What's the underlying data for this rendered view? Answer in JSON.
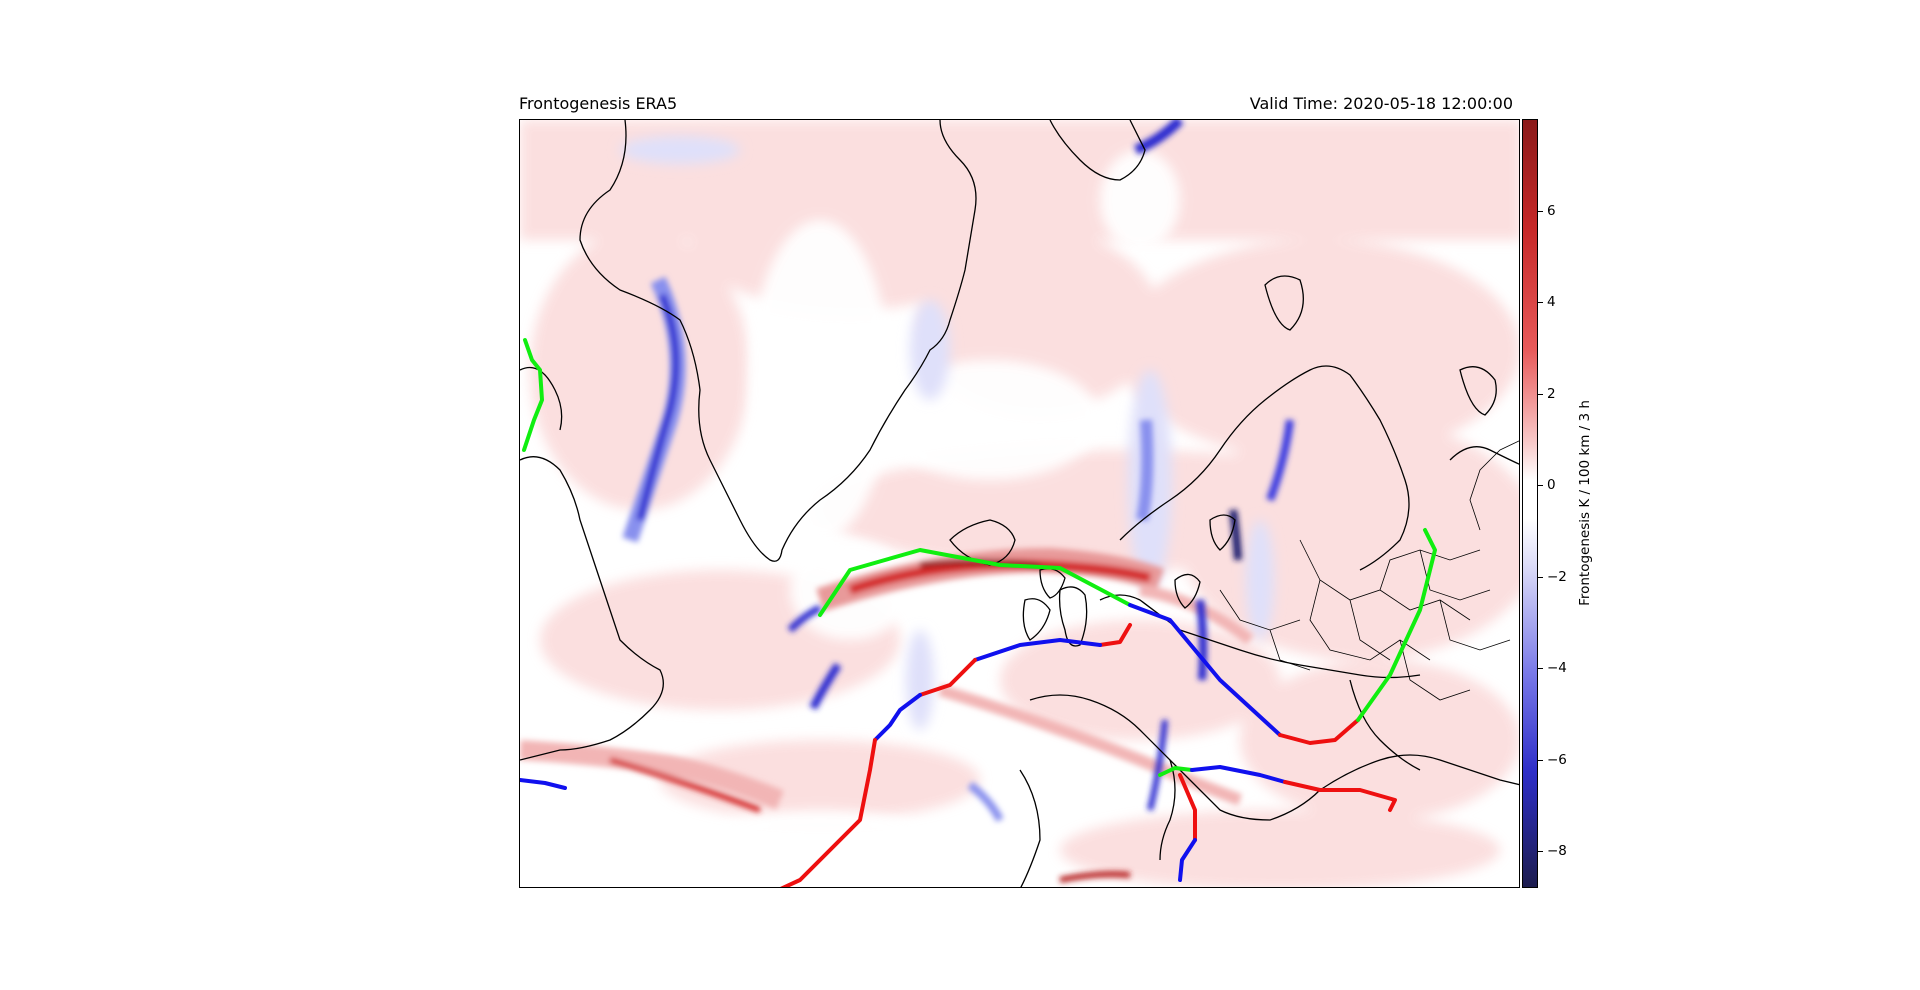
{
  "header": {
    "title": "Frontogenesis ERA5",
    "valid_time": "Valid Time: 2020-05-18 12:00:00"
  },
  "colorbar": {
    "label": "Frontogenesis K / 100 km / 3 h",
    "ticks": [
      "6",
      "4",
      "2",
      "0",
      "−2",
      "−4",
      "−6",
      "−8"
    ],
    "range": [
      -8.8,
      8.0
    ],
    "colors": {
      "strong_positive": "#8b1a1a",
      "positive": "#e03a3a",
      "weak_positive": "#fbdcdc",
      "neutral": "#ffffff",
      "weak_negative": "#dfe0fa",
      "negative": "#3a3ae0",
      "strong_negative": "#1c1c6e"
    }
  },
  "front_colors": {
    "cold": "#1010ee",
    "warm": "#ee1010",
    "occluded": "#10ee10"
  },
  "map_icons": [
    "coastline-lines",
    "front-lines",
    "frontogenesis-field"
  ]
}
